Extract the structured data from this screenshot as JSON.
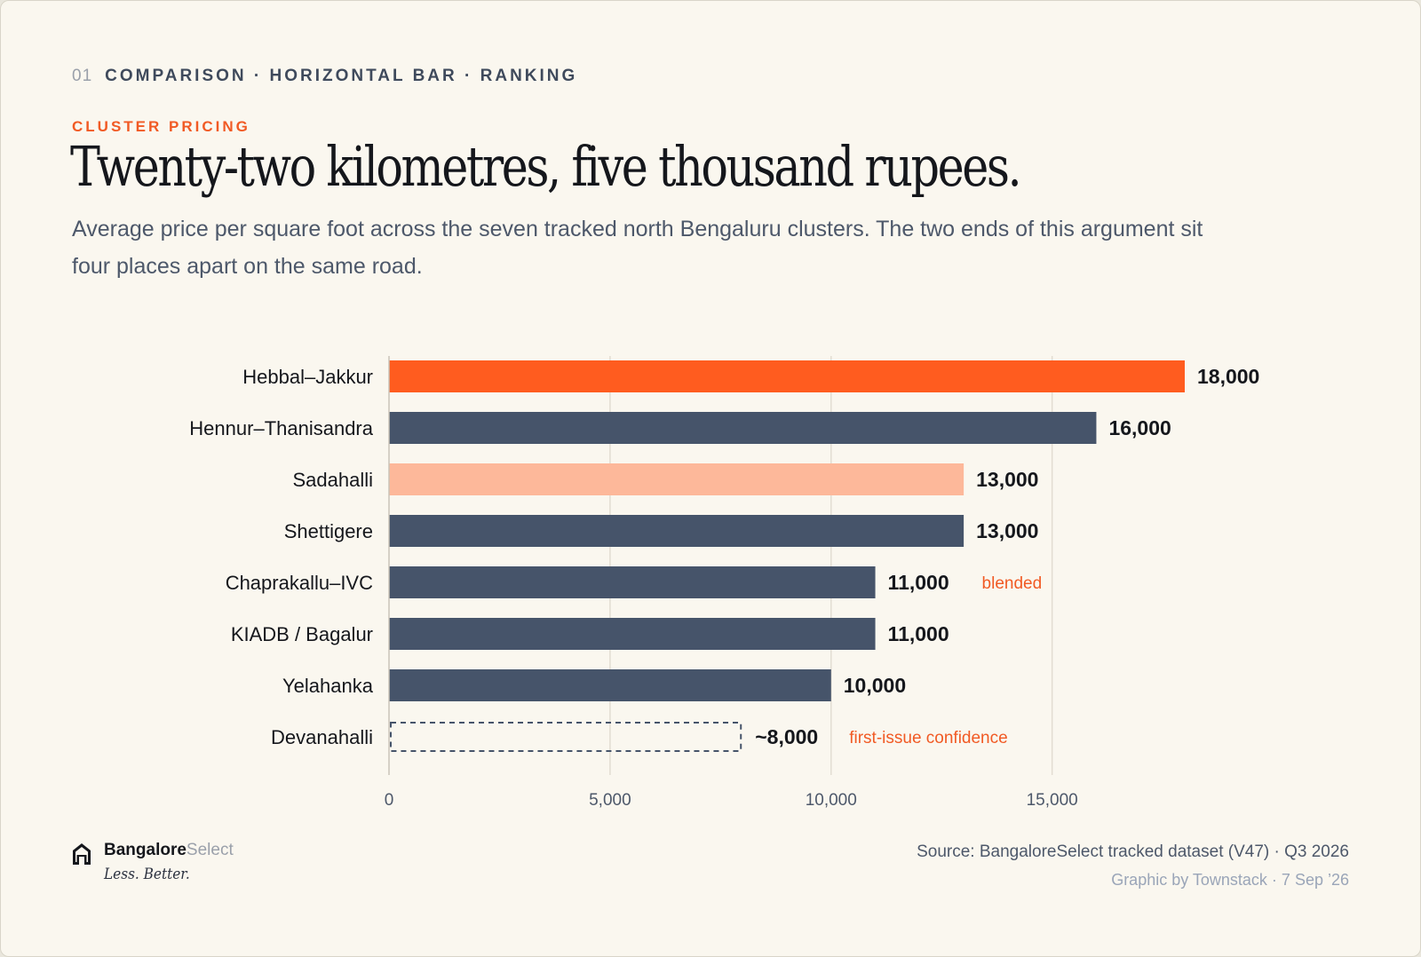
{
  "header": {
    "section_number": "01",
    "kicker": "COMPARISON · HORIZONTAL BAR · RANKING",
    "eyebrow": "CLUSTER PRICING",
    "title": "Twenty-two kilometres, five thousand rupees.",
    "subtitle": "Average price per square foot across the seven tracked north Bengaluru clusters. The two ends of this argument sit four places apart on the same road."
  },
  "chart_data": {
    "type": "bar",
    "orientation": "horizontal",
    "categories": [
      "Hebbal–Jakkur",
      "Hennur–Thanisandra",
      "Sadahalli",
      "Shettigere",
      "Chaprakallu–IVC",
      "KIADB / Bagalur",
      "Yelahanka",
      "Devanahalli"
    ],
    "values": [
      18000,
      16000,
      13000,
      13000,
      11000,
      11000,
      10000,
      8000
    ],
    "value_labels": [
      "18,000",
      "16,000",
      "13,000",
      "13,000",
      "11,000",
      "11,000",
      "10,000",
      "~8,000"
    ],
    "annotations": [
      "",
      "",
      "",
      "",
      "blended",
      "",
      "",
      "first-issue confidence"
    ],
    "styles": [
      "highlight",
      "default",
      "light",
      "default",
      "default",
      "default",
      "default",
      "dashed"
    ],
    "colors": {
      "highlight": "#ff5c1f",
      "default": "#46546a",
      "light": "#fdb89a",
      "dashed": "#46546a",
      "annotation": "#f15a24"
    },
    "xlim": [
      0,
      18000
    ],
    "xticks": [
      0,
      5000,
      10000,
      15000
    ],
    "xtick_labels": [
      "0",
      "5,000",
      "10,000",
      "15,000"
    ],
    "grid": true
  },
  "footer": {
    "brand_bold": "Bangalore",
    "brand_light": "Select",
    "brand_icon": "house-icon",
    "tagline": "Less. Better.",
    "source": "Source: BangaloreSelect tracked dataset (V47) · Q3 2026",
    "credit": "Graphic by Townstack · 7 Sep ’26"
  }
}
